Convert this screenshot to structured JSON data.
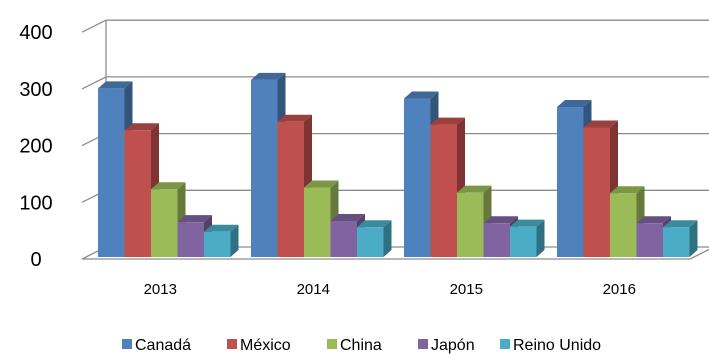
{
  "chart_data": {
    "type": "bar",
    "style": "3d-clustered-column",
    "categories": [
      "2013",
      "2014",
      "2015",
      "2016"
    ],
    "series": [
      {
        "name": "Canadá",
        "color": "#4F81BD",
        "values": [
          301,
          316,
          283,
          268
        ]
      },
      {
        "name": "México",
        "color": "#C0504D",
        "values": [
          227,
          242,
          237,
          232
        ]
      },
      {
        "name": "China",
        "color": "#9BBB59",
        "values": [
          123,
          126,
          117,
          116
        ]
      },
      {
        "name": "Japón",
        "color": "#8064A2",
        "values": [
          65,
          67,
          63,
          63
        ]
      },
      {
        "name": "Reino Unido",
        "color": "#4BACC6",
        "values": [
          48,
          56,
          57,
          56
        ]
      }
    ],
    "y_ticks": [
      "0",
      "100",
      "200",
      "300",
      "400"
    ],
    "ylim": [
      0,
      400
    ],
    "grid": true,
    "legend_position": "bottom"
  }
}
